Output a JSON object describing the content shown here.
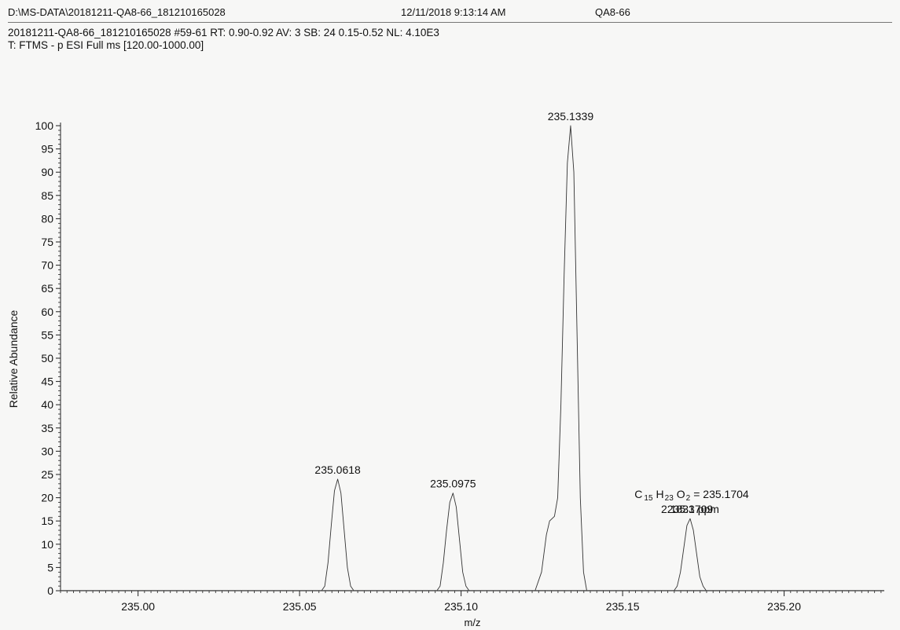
{
  "header": {
    "file_path": "D:\\MS-DATA\\20181211-QA8-66_181210165028",
    "datetime": "12/11/2018 9:13:14 AM",
    "sample": "QA8-66"
  },
  "scan": {
    "line1": "20181211-QA8-66_181210165028 #59-61   RT: 0.90-0.92   AV: 3   SB: 24  0.15-0.52   NL: 4.10E3",
    "line2": "T: FTMS - p ESI Full ms [120.00-1000.00]"
  },
  "chart_data": {
    "type": "line",
    "xlabel": "m/z",
    "ylabel": "Relative Abundance",
    "xlim": [
      234.976,
      235.231
    ],
    "ylim": [
      0,
      100
    ],
    "x_ticks": [
      235.0,
      235.05,
      235.1,
      235.15,
      235.2
    ],
    "x_tick_labels": [
      "235.00",
      "235.05",
      "235.10",
      "235.15",
      "235.20"
    ],
    "y_ticks": [
      0,
      5,
      10,
      15,
      20,
      25,
      30,
      35,
      40,
      45,
      50,
      55,
      60,
      65,
      70,
      75,
      80,
      85,
      90,
      95,
      100
    ],
    "y_tick_labels": [
      "0",
      "5",
      "10",
      "15",
      "20",
      "25",
      "30",
      "35",
      "40",
      "45",
      "50",
      "55",
      "60",
      "65",
      "70",
      "75",
      "80",
      "85",
      "90",
      "95",
      "100"
    ],
    "peaks": [
      {
        "mz": 235.0618,
        "abundance": 24.0,
        "label": "235.0618",
        "profile": [
          [
            235.0568,
            0
          ],
          [
            235.0578,
            1
          ],
          [
            235.0588,
            6
          ],
          [
            235.0598,
            14
          ],
          [
            235.0608,
            21.5
          ],
          [
            235.0618,
            24
          ],
          [
            235.0628,
            21
          ],
          [
            235.0638,
            13
          ],
          [
            235.0648,
            5
          ],
          [
            235.0658,
            1
          ],
          [
            235.0668,
            0
          ]
        ]
      },
      {
        "mz": 235.0975,
        "abundance": 21.0,
        "label": "235.0975",
        "profile": [
          [
            235.0925,
            0
          ],
          [
            235.0935,
            1
          ],
          [
            235.0945,
            6
          ],
          [
            235.0955,
            13
          ],
          [
            235.0965,
            19
          ],
          [
            235.0975,
            21
          ],
          [
            235.0985,
            18
          ],
          [
            235.0995,
            11
          ],
          [
            235.1005,
            4
          ],
          [
            235.1015,
            1
          ],
          [
            235.1025,
            0
          ]
        ]
      },
      {
        "mz": 235.1339,
        "abundance": 100.0,
        "label": "235.1339",
        "profile": [
          [
            235.1229,
            0
          ],
          [
            235.1249,
            4
          ],
          [
            235.1264,
            12
          ],
          [
            235.1274,
            15
          ],
          [
            235.1289,
            16
          ],
          [
            235.1299,
            20
          ],
          [
            235.1309,
            40
          ],
          [
            235.1319,
            68
          ],
          [
            235.1329,
            92
          ],
          [
            235.1339,
            100
          ],
          [
            235.1349,
            90
          ],
          [
            235.1359,
            55
          ],
          [
            235.1369,
            20
          ],
          [
            235.1379,
            4
          ],
          [
            235.1389,
            0
          ]
        ]
      },
      {
        "mz": 235.1709,
        "abundance": 15.5,
        "label": "235.1709",
        "profile": [
          [
            235.1659,
            0
          ],
          [
            235.1669,
            1
          ],
          [
            235.1679,
            4
          ],
          [
            235.1689,
            9
          ],
          [
            235.1699,
            14
          ],
          [
            235.1709,
            15.5
          ],
          [
            235.1719,
            13
          ],
          [
            235.1729,
            8
          ],
          [
            235.1739,
            3
          ],
          [
            235.1749,
            1
          ],
          [
            235.1759,
            0
          ]
        ]
      }
    ],
    "annotation": {
      "element1": "C",
      "count1": "15",
      "element2": "H",
      "count2": "23",
      "element3": "O",
      "count3": "2",
      "formula_value": "= 235.1704",
      "ppm": "2.1833 ppm"
    }
  }
}
